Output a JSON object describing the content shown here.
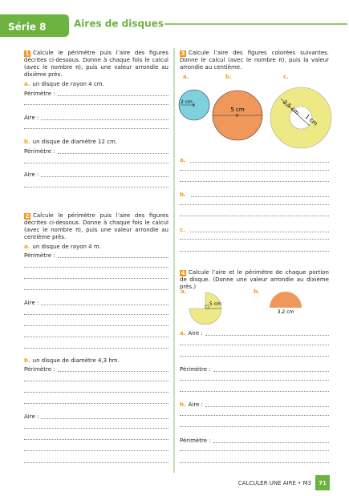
{
  "header": {
    "series": "Série 8",
    "title": "Aires de disques"
  },
  "exercise1": {
    "number": "1",
    "instruction": "Calcule le périmètre puis l’aire des figures décrites ci-dessous. Donne à chaque fois le calcul (avec le nombre π), puis une valeur arrondie au dixième près.",
    "a": {
      "letter": "a.",
      "text": "un disque de rayon 4 cm.",
      "perimeter": "Périmètre :",
      "area": "Aire :"
    },
    "b": {
      "letter": "b.",
      "text": "un disque de diamètre 12 cm.",
      "perimeter": "Périmètre :",
      "area": "Aire :"
    }
  },
  "exercise2": {
    "number": "2",
    "instruction": "Calcule le périmètre puis l’aire des figures décrites ci-dessous. Donne à chaque fois le calcul (avec le nombre π), puis une valeur arrondie au centième près.",
    "a": {
      "letter": "a.",
      "text": "un disque de rayon 4 m.",
      "perimeter": "Périmètre :",
      "area": "Aire :"
    },
    "b": {
      "letter": "b.",
      "text": "un disque de diamètre 4,3 hm.",
      "perimeter": "Périmètre :",
      "area": "Aire :"
    }
  },
  "exercise3": {
    "number": "3",
    "instruction": "Calcule l’aire des figures colorées suivantes. Donne le calcul (avec le nombre π), puis la valeur arrondie au centième.",
    "figures": {
      "a": {
        "letter": "a.",
        "radius": "2 cm"
      },
      "b": {
        "letter": "b.",
        "diameter": "5 cm"
      },
      "c": {
        "letter": "c.",
        "outer": "2,5 cm",
        "inner": "1 cm"
      }
    },
    "answers": [
      "a.",
      "b.",
      "c."
    ]
  },
  "exercise4": {
    "number": "4",
    "instruction": "Calcule l’aire et le périmètre de chaque portion de disque. (Donne une valeur arrondie au dixième près.)",
    "figures": {
      "a": {
        "letter": "a.",
        "radius": "5 cm"
      },
      "b": {
        "letter": "b.",
        "diameter": "3,2 cm"
      }
    },
    "answers": {
      "a": {
        "letter": "a.",
        "area": "Aire :",
        "perimeter": "Périmètre :"
      },
      "b": {
        "letter": "b.",
        "area": "Aire :",
        "perimeter": "Périmètre :"
      }
    }
  },
  "footer": {
    "chapter": "CALCULER UNE AIRE • M3",
    "page": "71"
  }
}
